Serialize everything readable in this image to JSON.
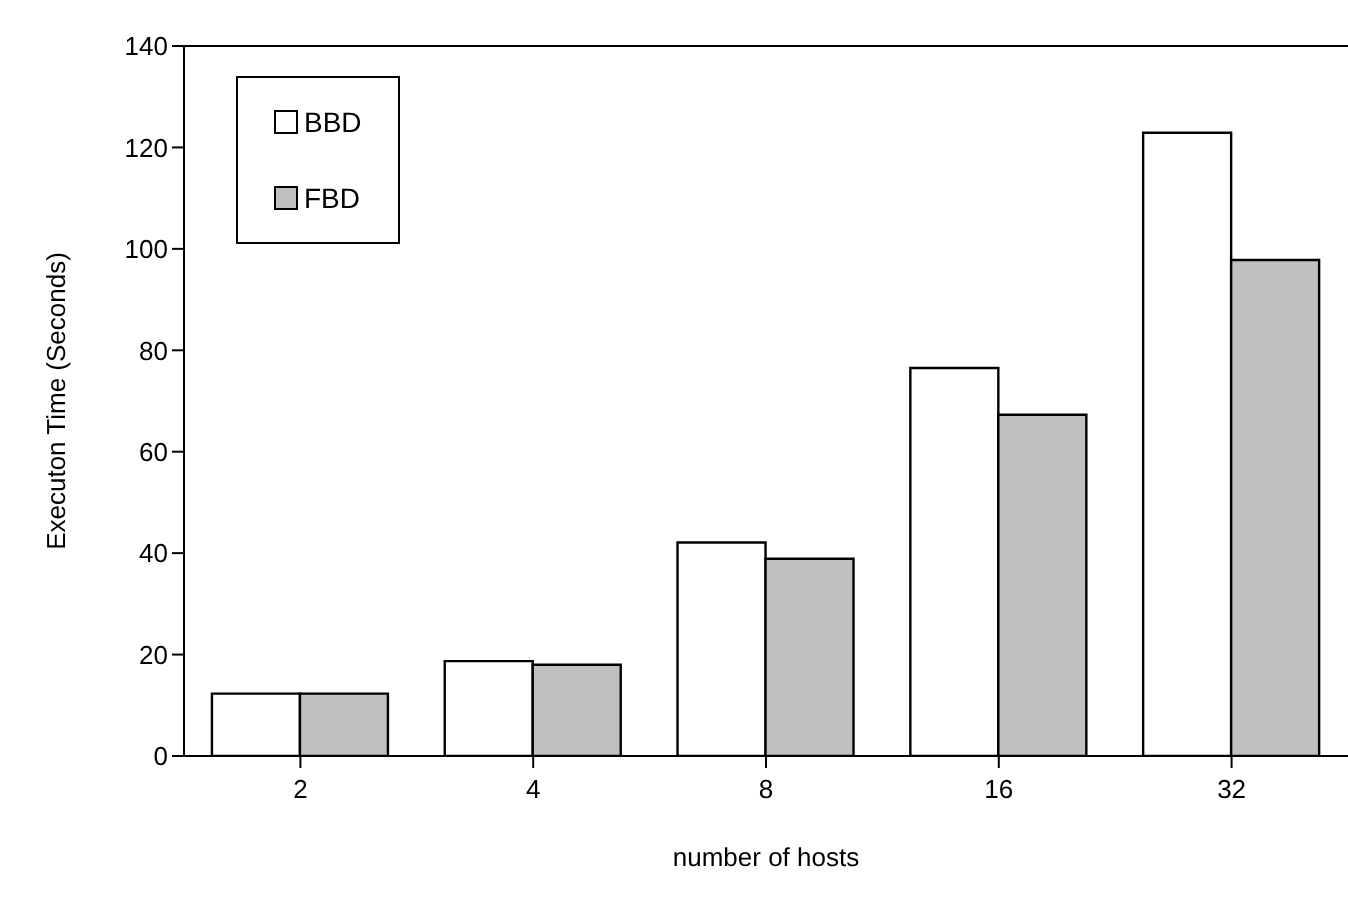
{
  "chart_data": {
    "type": "bar",
    "xlabel": "number of hosts",
    "ylabel": "Executon Time (Seconds)",
    "categories": [
      "2",
      "4",
      "8",
      "16",
      "32"
    ],
    "series": [
      {
        "name": "BBD",
        "color": "#ffffff",
        "values": [
          12.3,
          18.7,
          42.1,
          76.5,
          122.9
        ]
      },
      {
        "name": "FBD",
        "color": "#c0c0c0",
        "values": [
          12.3,
          18.0,
          38.9,
          67.3,
          97.8
        ]
      }
    ],
    "ylim": [
      0,
      140
    ],
    "yticks": [
      0,
      20,
      40,
      60,
      80,
      100,
      120,
      140
    ],
    "grid": false,
    "legend": "top left"
  }
}
